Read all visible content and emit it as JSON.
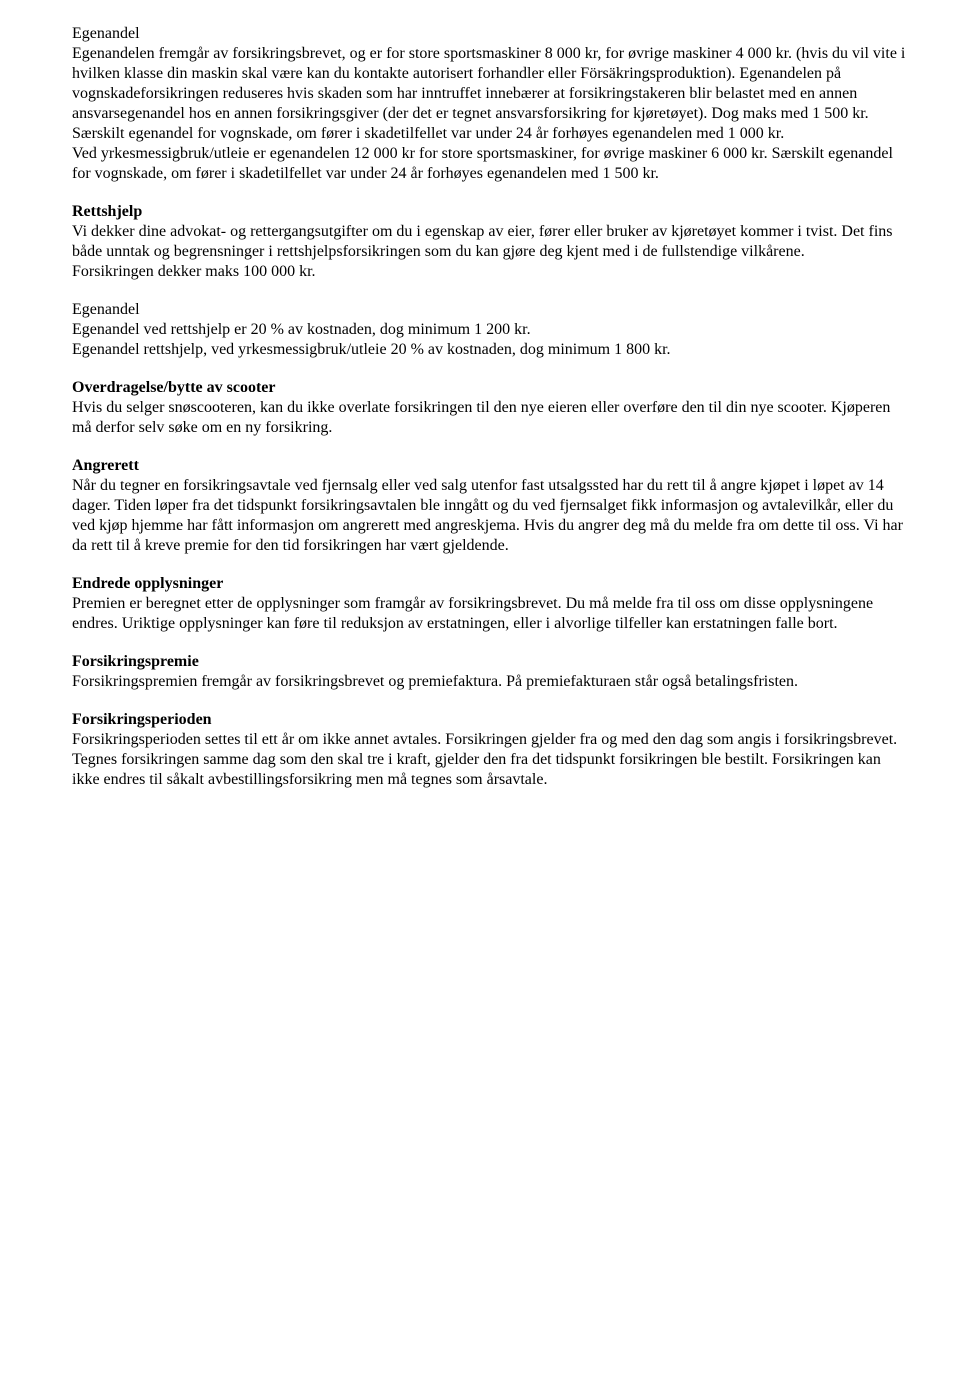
{
  "egenandel1": {
    "heading": "Egenandel",
    "p1": "Egenandelen fremgår av forsikringsbrevet, og er for store sportsmaskiner 8 000 kr, for øvrige maskiner 4 000 kr. (hvis du vil vite i hvilken klasse din maskin skal være kan du kontakte autorisert forhandler eller Försäkringsproduktion). Egenandelen på vognskadeforsikringen reduseres hvis skaden som har inntruffet innebærer at forsikringstakeren blir belastet med en annen ansvarsegenandel hos en annen forsikringsgiver (der det er tegnet ansvarsforsikring for kjøretøyet). Dog maks med 1 500 kr.",
    "p2": "Særskilt egenandel for vognskade, om fører i skadetilfellet var under 24 år forhøyes egenandelen med 1 000 kr.",
    "p3": "Ved yrkesmessigbruk/utleie er egenandelen 12 000 kr for store sportsmaskiner, for øvrige maskiner 6 000 kr. Særskilt egenandel for vognskade, om fører i skadetilfellet var under 24 år forhøyes egenandelen med 1 500 kr."
  },
  "rettshjelp": {
    "heading": "Rettshjelp",
    "p1": "Vi dekker dine advokat- og rettergangsutgifter om du i egenskap av eier, fører eller bruker av kjøretøyet kommer i tvist. Det fins både unntak og begrensninger i rettshjelpsforsikringen som du kan gjøre deg kjent med i de fullstendige vilkårene.",
    "p2": "Forsikringen dekker maks 100 000 kr."
  },
  "egenandel2": {
    "heading": "Egenandel",
    "p1": "Egenandel ved rettshjelp er 20 % av kostnaden, dog minimum 1 200 kr.",
    "p2": "Egenandel rettshjelp, ved yrkesmessigbruk/utleie 20 % av kostnaden, dog minimum 1 800 kr."
  },
  "overdragelse": {
    "heading": "Overdragelse/bytte av scooter",
    "p1": "Hvis du selger snøscooteren, kan du ikke overlate forsikringen til den nye eieren eller overføre den til din nye scooter. Kjøperen må derfor selv søke om en ny forsikring."
  },
  "angrerett": {
    "heading": "Angrerett",
    "p1": "Når du tegner en forsikringsavtale ved fjernsalg eller ved salg utenfor fast utsalgssted har du rett til å angre kjøpet i løpet av 14 dager. Tiden løper fra det tidspunkt forsikringsavtalen ble inngått og du ved fjernsalget fikk informasjon og avtalevilkår, eller du ved kjøp hjemme har fått informasjon om angrerett med angreskjema. Hvis du angrer deg må du melde fra om dette til oss. Vi har da rett til å kreve premie for den tid forsikringen har vært gjeldende."
  },
  "endrede": {
    "heading": "Endrede opplysninger",
    "p1": "Premien er beregnet etter de opplysninger som framgår av forsikringsbrevet. Du må melde fra til oss om disse opplysningene endres. Uriktige opplysninger kan føre til reduksjon av erstatningen, eller i alvorlige tilfeller kan erstatningen falle bort."
  },
  "premie": {
    "heading": "Forsikringspremie",
    "p1": "Forsikringspremien fremgår av forsikringsbrevet og premiefaktura. På premiefakturaen står også betalingsfristen."
  },
  "perioden": {
    "heading": "Forsikringsperioden",
    "p1": "Forsikringsperioden settes til ett år om ikke annet avtales. Forsikringen gjelder fra og med den dag som angis i forsikringsbrevet. Tegnes forsikringen samme dag som den skal tre i kraft, gjelder den fra det tidspunkt forsikringen ble bestilt. Forsikringen kan ikke endres til såkalt avbestillingsforsikring men må tegnes som årsavtale."
  }
}
